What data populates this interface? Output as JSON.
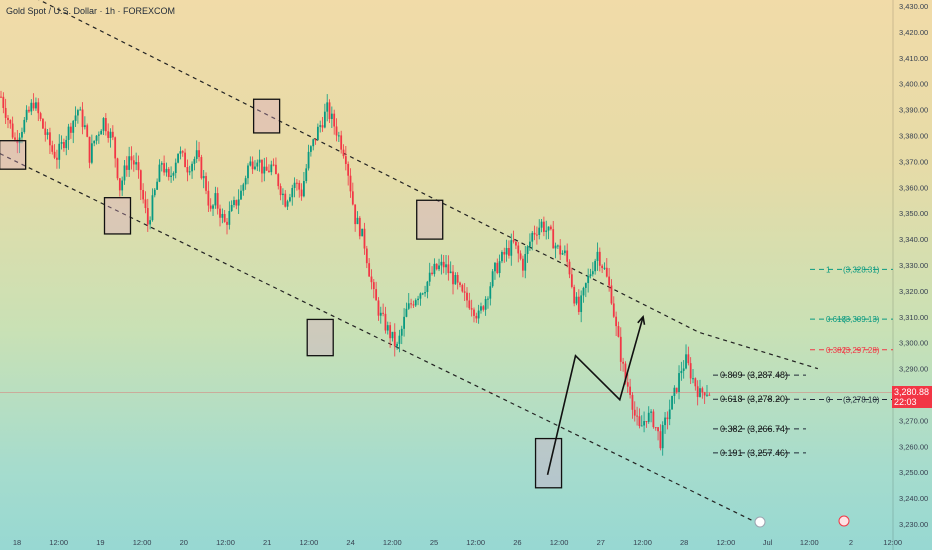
{
  "header": {
    "symbol_line": "Gold Spot / U.S. Dollar · 1h · FOREXCOM"
  },
  "colors": {
    "up": "#089981",
    "down": "#f23645",
    "price_line": "#f23645",
    "fib": "#1f2937",
    "fib_green": "#089981",
    "fib_red": "#f23645"
  },
  "price_tag": {
    "price": "3,280.88",
    "countdown": "22:03"
  },
  "chart_data": {
    "type": "candlestick",
    "title": "Gold Spot / U.S. Dollar · 1h · FOREXCOM",
    "ylim": [
      3225,
      3430
    ],
    "y_ticks": [
      3230,
      3240,
      3250,
      3260,
      3270,
      3280,
      3290,
      3300,
      3310,
      3320,
      3330,
      3340,
      3350,
      3360,
      3370,
      3380,
      3390,
      3400,
      3410,
      3420,
      3430
    ],
    "x_labels": [
      "18",
      "12:00",
      "19",
      "12:00",
      "20",
      "12:00",
      "21",
      "12:00",
      "24",
      "12:00",
      "25",
      "12:00",
      "26",
      "12:00",
      "27",
      "12:00",
      "28",
      "12:00",
      "Jul",
      "12:00",
      "2",
      "12:00"
    ],
    "current_price": 3280.88,
    "countdown": "22:03",
    "close_path": [
      [
        0,
        3395
      ],
      [
        6,
        3378
      ],
      [
        10,
        3385
      ],
      [
        14,
        3393
      ],
      [
        18,
        3383
      ],
      [
        22,
        3374
      ],
      [
        24,
        3372
      ],
      [
        27,
        3378
      ],
      [
        30,
        3384
      ],
      [
        33,
        3390
      ],
      [
        36,
        3383
      ],
      [
        38,
        3372
      ],
      [
        40,
        3378
      ],
      [
        44,
        3386
      ],
      [
        48,
        3378
      ],
      [
        51,
        3360
      ],
      [
        55,
        3372
      ],
      [
        58,
        3368
      ],
      [
        61,
        3355
      ],
      [
        63,
        3346
      ],
      [
        66,
        3358
      ],
      [
        69,
        3370
      ],
      [
        72,
        3362
      ],
      [
        76,
        3374
      ],
      [
        80,
        3368
      ],
      [
        84,
        3372
      ],
      [
        88,
        3360
      ],
      [
        90,
        3350
      ],
      [
        92,
        3355
      ],
      [
        96,
        3346
      ],
      [
        99,
        3351
      ],
      [
        103,
        3358
      ],
      [
        106,
        3368
      ],
      [
        110,
        3372
      ],
      [
        113,
        3365
      ],
      [
        116,
        3368
      ],
      [
        119,
        3362
      ],
      [
        122,
        3355
      ],
      [
        126,
        3362
      ],
      [
        129,
        3358
      ],
      [
        132,
        3372
      ],
      [
        136,
        3382
      ],
      [
        140,
        3390
      ],
      [
        144,
        3382
      ],
      [
        148,
        3372
      ],
      [
        150,
        3360
      ],
      [
        152,
        3348
      ],
      [
        154,
        3344
      ],
      [
        156,
        3338
      ],
      [
        158,
        3328
      ],
      [
        160,
        3318
      ],
      [
        163,
        3310
      ],
      [
        166,
        3305
      ],
      [
        170,
        3298
      ],
      [
        174,
        3312
      ],
      [
        178,
        3318
      ],
      [
        182,
        3322
      ],
      [
        186,
        3328
      ],
      [
        190,
        3330
      ],
      [
        194,
        3325
      ],
      [
        198,
        3318
      ],
      [
        202,
        3315
      ],
      [
        205,
        3310
      ],
      [
        209,
        3320
      ],
      [
        212,
        3328
      ],
      [
        216,
        3334
      ],
      [
        220,
        3338
      ],
      [
        224,
        3330
      ],
      [
        228,
        3342
      ],
      [
        232,
        3346
      ],
      [
        236,
        3341
      ],
      [
        239,
        3336
      ],
      [
        242,
        3334
      ],
      [
        244,
        3328
      ],
      [
        246,
        3318
      ],
      [
        248,
        3312
      ],
      [
        251,
        3322
      ],
      [
        254,
        3330
      ],
      [
        256,
        3335
      ],
      [
        259,
        3328
      ],
      [
        262,
        3318
      ],
      [
        264,
        3305
      ],
      [
        266,
        3295
      ],
      [
        268,
        3285
      ],
      [
        270,
        3282
      ],
      [
        272,
        3272
      ],
      [
        274,
        3266
      ],
      [
        277,
        3272
      ],
      [
        280,
        3270
      ],
      [
        283,
        3262
      ],
      [
        286,
        3272
      ],
      [
        289,
        3280
      ],
      [
        292,
        3290
      ],
      [
        294,
        3293
      ],
      [
        297,
        3286
      ],
      [
        300,
        3280
      ],
      [
        302,
        3282
      ],
      [
        304,
        3280.9
      ]
    ],
    "channel_upper": [
      [
        0,
        3440
      ],
      [
        300,
        3304
      ],
      [
        351,
        3290
      ]
    ],
    "channel_lower": [
      [
        0,
        3373
      ],
      [
        326,
        3230
      ]
    ],
    "boxes": [
      {
        "center_bar": 5,
        "low": 3367,
        "high": 3378
      },
      {
        "center_bar": 50,
        "low": 3342,
        "high": 3356
      },
      {
        "center_bar": 114,
        "low": 3381,
        "high": 3394
      },
      {
        "center_bar": 137,
        "low": 3295,
        "high": 3309
      },
      {
        "center_bar": 184,
        "low": 3340,
        "high": 3355
      },
      {
        "center_bar": 235,
        "low": 3244,
        "high": 3263
      }
    ],
    "fib_left": [
      {
        "label": "0.809",
        "price": "(3,287.48)",
        "value": 3287.48
      },
      {
        "label": "0.618",
        "price": "(3,278.20)",
        "value": 3278.2
      },
      {
        "label": "0.382",
        "price": "(3,266.74)",
        "value": 3266.74
      },
      {
        "label": "0.191",
        "price": "(3,257.46)",
        "value": 3257.46
      }
    ],
    "fib_right": [
      {
        "label": "1",
        "price": "(3,328.31)",
        "value": 3328.31,
        "color": "green"
      },
      {
        "label": "0.618",
        "price": "(3,309.13)",
        "value": 3309.13,
        "color": "green"
      },
      {
        "label": "0.382",
        "price": "(3,297.28)",
        "value": 3297.28,
        "color": "red"
      },
      {
        "label": "0",
        "price": "(3,278.10)",
        "value": 3278.1,
        "color": "black"
      }
    ],
    "projection": [
      [
        235,
        3249
      ],
      [
        247,
        3295
      ],
      [
        266,
        3278
      ],
      [
        276,
        3310
      ]
    ]
  }
}
